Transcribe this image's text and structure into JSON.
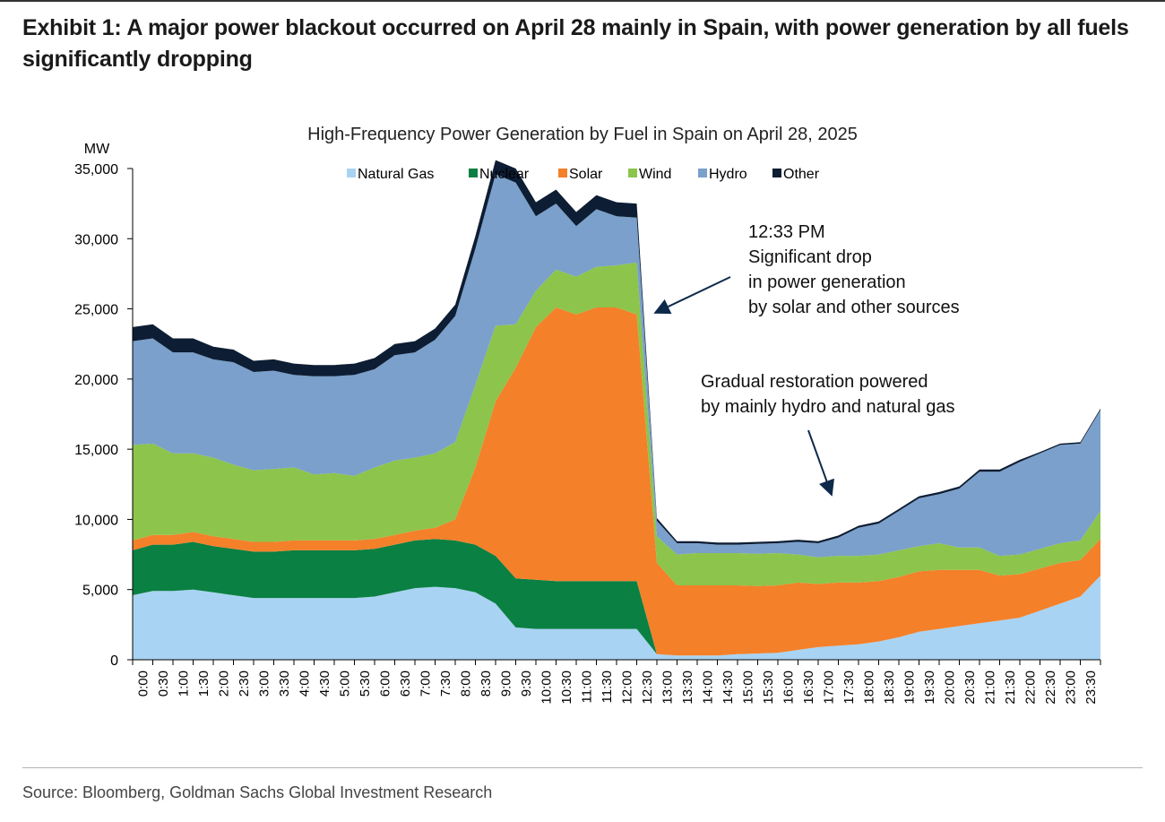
{
  "exhibit_title": "Exhibit 1: A major power blackout occurred on April 28 mainly in Spain, with power generation by all fuels significantly dropping",
  "source": "Source: Bloomberg, Goldman Sachs Global Investment Research",
  "chart_data": {
    "type": "area",
    "stacked": true,
    "title": "High-Frequency Power Generation by Fuel in Spain on April 28, 2025",
    "ylabel": "MW",
    "xlabel": "",
    "ylim": [
      0,
      35000
    ],
    "yticks": [
      0,
      5000,
      10000,
      15000,
      20000,
      25000,
      30000,
      35000
    ],
    "ytick_labels": [
      "0",
      "5,000",
      "10,000",
      "15,000",
      "20,000",
      "25,000",
      "30,000",
      "35,000"
    ],
    "grid": false,
    "legend_position": "top",
    "x": [
      "0:00",
      "0:30",
      "1:00",
      "1:30",
      "2:00",
      "2:30",
      "3:00",
      "3:30",
      "4:00",
      "4:30",
      "5:00",
      "5:30",
      "6:00",
      "6:30",
      "7:00",
      "7:30",
      "8:00",
      "8:30",
      "9:00",
      "9:30",
      "10:00",
      "10:30",
      "11:00",
      "11:30",
      "12:00",
      "12:30",
      "13:00",
      "13:30",
      "14:00",
      "14:30",
      "15:00",
      "15:30",
      "16:00",
      "16:30",
      "17:00",
      "17:30",
      "18:00",
      "18:30",
      "19:00",
      "19:30",
      "20:00",
      "20:30",
      "21:00",
      "21:30",
      "22:00",
      "22:30",
      "23:00",
      "23:30"
    ],
    "x_end": "24:00",
    "series": [
      {
        "name": "Natural Gas",
        "color": "#a9d3f2",
        "values": [
          4600,
          4900,
          4900,
          5000,
          4800,
          4600,
          4400,
          4400,
          4400,
          4400,
          4400,
          4400,
          4500,
          4800,
          5100,
          5200,
          5100,
          4800,
          4000,
          2300,
          2200,
          2200,
          2200,
          2200,
          2200,
          2200,
          400,
          300,
          300,
          300,
          400,
          450,
          500,
          700,
          900,
          1000,
          1100,
          1300,
          1600,
          2000,
          2200,
          2400,
          2600,
          2800,
          3000,
          3500,
          4000,
          4500
        ],
        "end": 6000
      },
      {
        "name": "Nuclear",
        "color": "#0a8043",
        "values": [
          3200,
          3300,
          3300,
          3400,
          3300,
          3300,
          3300,
          3300,
          3400,
          3400,
          3400,
          3400,
          3400,
          3400,
          3400,
          3400,
          3400,
          3400,
          3400,
          3500,
          3500,
          3400,
          3400,
          3400,
          3400,
          3400,
          0,
          0,
          0,
          0,
          0,
          0,
          0,
          0,
          0,
          0,
          0,
          0,
          0,
          0,
          0,
          0,
          0,
          0,
          0,
          0,
          0,
          0
        ],
        "end": 0
      },
      {
        "name": "Solar",
        "color": "#f4802a",
        "values": [
          700,
          700,
          700,
          700,
          700,
          700,
          700,
          700,
          700,
          700,
          700,
          700,
          700,
          700,
          700,
          800,
          1500,
          5500,
          11000,
          15000,
          18000,
          19500,
          19000,
          19500,
          19500,
          19000,
          6500,
          5000,
          5000,
          5000,
          4900,
          4800,
          4800,
          4800,
          4500,
          4500,
          4400,
          4300,
          4300,
          4300,
          4200,
          4000,
          3800,
          3200,
          3100,
          3000,
          2900,
          2600
        ],
        "end": 2600
      },
      {
        "name": "Wind",
        "color": "#8dc44b",
        "values": [
          6800,
          6500,
          5800,
          5600,
          5600,
          5300,
          5100,
          5200,
          5200,
          4700,
          4800,
          4600,
          5100,
          5300,
          5200,
          5300,
          5500,
          5900,
          5400,
          3100,
          2600,
          2700,
          2700,
          2900,
          3000,
          3700,
          1900,
          2200,
          2300,
          2300,
          2300,
          2300,
          2300,
          2000,
          1900,
          1900,
          1900,
          1900,
          1900,
          1800,
          1900,
          1600,
          1600,
          1400,
          1400,
          1400,
          1400,
          1400
        ],
        "end": 2000
      },
      {
        "name": "Hydro",
        "color": "#7aa0cb",
        "values": [
          7400,
          7500,
          7200,
          7200,
          7000,
          7300,
          7000,
          7000,
          6600,
          7000,
          6900,
          7200,
          7000,
          7500,
          7500,
          8100,
          9000,
          9700,
          10800,
          10100,
          5300,
          4700,
          3600,
          4100,
          3500,
          3200,
          1100,
          800,
          700,
          600,
          600,
          700,
          700,
          900,
          1000,
          1300,
          2000,
          2200,
          2800,
          3400,
          3500,
          4200,
          5400,
          6000,
          6600,
          6800,
          7000,
          6900
        ],
        "end": 7200
      },
      {
        "name": "Other",
        "color": "#0d1d33",
        "values": [
          1000,
          1000,
          1000,
          1000,
          900,
          900,
          800,
          800,
          800,
          800,
          800,
          800,
          800,
          800,
          800,
          800,
          800,
          900,
          1000,
          1000,
          1000,
          1000,
          1000,
          1000,
          1000,
          1000,
          200,
          150,
          150,
          150,
          150,
          150,
          150,
          150,
          150,
          150,
          150,
          150,
          150,
          150,
          150,
          150,
          150,
          150,
          150,
          100,
          100,
          100
        ],
        "end": 100
      }
    ],
    "annotations": [
      {
        "lines": [
          "12:33 PM",
          "Significant drop",
          "in power generation",
          "by solar and other sources"
        ]
      },
      {
        "lines": [
          "Gradual restoration powered",
          "by mainly hydro and natural gas"
        ]
      }
    ]
  }
}
